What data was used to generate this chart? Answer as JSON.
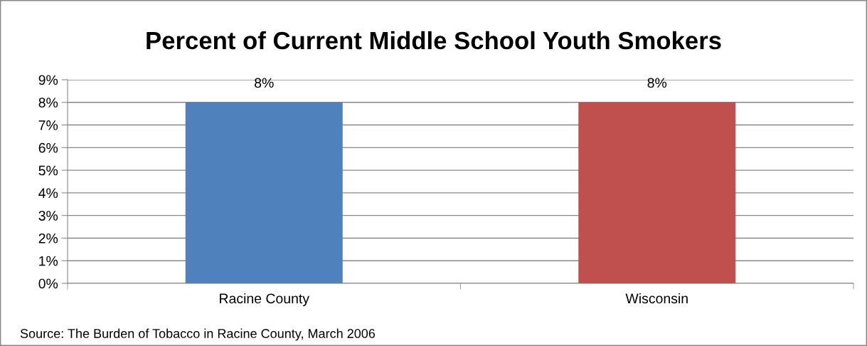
{
  "chart_data": {
    "type": "bar",
    "title": "Percent of Current Middle School Youth Smokers",
    "categories": [
      "Racine County",
      "Wisconsin"
    ],
    "values": [
      8,
      8
    ],
    "colors": [
      "#4f81bd",
      "#c0504d"
    ],
    "value_labels": [
      "8%",
      "8%"
    ],
    "ylim": [
      0,
      9
    ],
    "yticks": [
      {
        "value": 0,
        "label": "0%"
      },
      {
        "value": 1,
        "label": "1%"
      },
      {
        "value": 2,
        "label": "2%"
      },
      {
        "value": 3,
        "label": "3%"
      },
      {
        "value": 4,
        "label": "4%"
      },
      {
        "value": 5,
        "label": "5%"
      },
      {
        "value": 6,
        "label": "6%"
      },
      {
        "value": 7,
        "label": "7%"
      },
      {
        "value": 8,
        "label": "8%"
      },
      {
        "value": 9,
        "label": "9%"
      }
    ],
    "grid": "y",
    "annotations": [
      "Source: The Burden of Tobacco in Racine County, March 2006"
    ]
  }
}
